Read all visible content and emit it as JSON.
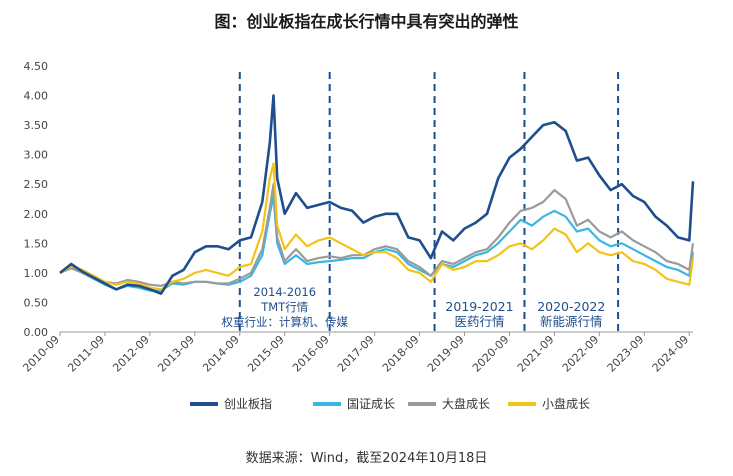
{
  "figure": {
    "title": "图：创业板指在成长行情中具有突出的弹性",
    "source_note": "数据来源：Wind，截至2024年10月18日"
  },
  "annotations": [
    {
      "lines": [
        "2014-2016",
        "TMT行情",
        "权重行业：计算机、传媒"
      ],
      "x_from": "2014-09",
      "x_to": "2016-09",
      "color": "#1f4e8c"
    },
    {
      "lines": [
        "2019-2021",
        "医药行情"
      ],
      "x_from": "2019-01",
      "x_to": "2021-01",
      "color": "#1f4e8c"
    },
    {
      "lines": [
        "2020-2022",
        "新能源行情"
      ],
      "x_from": "2021-01",
      "x_to": "2023-02",
      "color": "#1f4e8c"
    }
  ],
  "chart_data": {
    "type": "line",
    "title": "图：创业板指在成长行情中具有突出的弹性",
    "xlabel": "",
    "ylabel": "",
    "ylim": [
      0,
      4.5
    ],
    "yticks": [
      "0.00",
      "0.50",
      "1.00",
      "1.50",
      "2.00",
      "2.50",
      "3.00",
      "3.50",
      "4.00",
      "4.50"
    ],
    "xlim": [
      "2010-09",
      "2024-10"
    ],
    "xticks": [
      "2010-09",
      "2011-09",
      "2012-09",
      "2013-09",
      "2014-09",
      "2015-09",
      "2016-09",
      "2017-09",
      "2018-09",
      "2019-09",
      "2020-09",
      "2021-09",
      "2022-09",
      "2023-09",
      "2024-09"
    ],
    "grid": false,
    "legend_position": "bottom",
    "vlines": [
      "2014-09",
      "2016-09",
      "2019-01",
      "2021-01",
      "2023-02"
    ],
    "series": [
      {
        "name": "创业板指",
        "color": "#1f4e8c",
        "x": [
          "2010-09",
          "2010-12",
          "2011-03",
          "2011-06",
          "2011-09",
          "2011-12",
          "2012-03",
          "2012-06",
          "2012-09",
          "2012-12",
          "2013-03",
          "2013-06",
          "2013-09",
          "2013-12",
          "2014-03",
          "2014-06",
          "2014-09",
          "2014-12",
          "2015-03",
          "2015-05",
          "2015-06",
          "2015-07",
          "2015-09",
          "2015-12",
          "2016-03",
          "2016-06",
          "2016-09",
          "2016-12",
          "2017-03",
          "2017-06",
          "2017-09",
          "2017-12",
          "2018-03",
          "2018-06",
          "2018-09",
          "2018-12",
          "2019-03",
          "2019-06",
          "2019-09",
          "2019-12",
          "2020-03",
          "2020-06",
          "2020-09",
          "2020-12",
          "2021-03",
          "2021-06",
          "2021-09",
          "2021-12",
          "2022-03",
          "2022-06",
          "2022-09",
          "2022-12",
          "2023-03",
          "2023-06",
          "2023-09",
          "2023-12",
          "2024-03",
          "2024-06",
          "2024-09",
          "2024-10"
        ],
        "values": [
          1.0,
          1.15,
          1.02,
          0.92,
          0.82,
          0.72,
          0.8,
          0.78,
          0.72,
          0.65,
          0.95,
          1.05,
          1.35,
          1.45,
          1.45,
          1.4,
          1.55,
          1.6,
          2.2,
          3.2,
          4.0,
          2.6,
          2.0,
          2.35,
          2.1,
          2.15,
          2.2,
          2.1,
          2.05,
          1.85,
          1.95,
          2.0,
          2.0,
          1.6,
          1.55,
          1.25,
          1.7,
          1.55,
          1.75,
          1.85,
          2.0,
          2.6,
          2.95,
          3.1,
          3.3,
          3.5,
          3.55,
          3.4,
          2.9,
          2.95,
          2.65,
          2.4,
          2.5,
          2.3,
          2.2,
          1.95,
          1.8,
          1.6,
          1.55,
          2.55
        ]
      },
      {
        "name": "国证成长",
        "color": "#3ab6e2",
        "x": [
          "2010-09",
          "2010-12",
          "2011-03",
          "2011-06",
          "2011-09",
          "2011-12",
          "2012-03",
          "2012-06",
          "2012-09",
          "2012-12",
          "2013-03",
          "2013-06",
          "2013-09",
          "2013-12",
          "2014-03",
          "2014-06",
          "2014-09",
          "2014-12",
          "2015-03",
          "2015-05",
          "2015-06",
          "2015-07",
          "2015-09",
          "2015-12",
          "2016-03",
          "2016-06",
          "2016-09",
          "2016-12",
          "2017-03",
          "2017-06",
          "2017-09",
          "2017-12",
          "2018-03",
          "2018-06",
          "2018-09",
          "2018-12",
          "2019-03",
          "2019-06",
          "2019-09",
          "2019-12",
          "2020-03",
          "2020-06",
          "2020-09",
          "2020-12",
          "2021-03",
          "2021-06",
          "2021-09",
          "2021-12",
          "2022-03",
          "2022-06",
          "2022-09",
          "2022-12",
          "2023-03",
          "2023-06",
          "2023-09",
          "2023-12",
          "2024-03",
          "2024-06",
          "2024-09",
          "2024-10"
        ],
        "values": [
          1.0,
          1.1,
          1.0,
          0.9,
          0.8,
          0.72,
          0.78,
          0.75,
          0.7,
          0.7,
          0.82,
          0.8,
          0.85,
          0.85,
          0.82,
          0.8,
          0.85,
          0.95,
          1.3,
          2.0,
          2.3,
          1.5,
          1.15,
          1.3,
          1.15,
          1.18,
          1.2,
          1.22,
          1.25,
          1.25,
          1.35,
          1.4,
          1.35,
          1.15,
          1.05,
          0.95,
          1.15,
          1.1,
          1.2,
          1.3,
          1.35,
          1.5,
          1.7,
          1.9,
          1.8,
          1.95,
          2.05,
          1.95,
          1.7,
          1.75,
          1.55,
          1.45,
          1.5,
          1.4,
          1.3,
          1.2,
          1.1,
          1.05,
          0.95,
          1.35
        ]
      },
      {
        "name": "大盘成长",
        "color": "#9a9a9a",
        "x": [
          "2010-09",
          "2010-12",
          "2011-03",
          "2011-06",
          "2011-09",
          "2011-12",
          "2012-03",
          "2012-06",
          "2012-09",
          "2012-12",
          "2013-03",
          "2013-06",
          "2013-09",
          "2013-12",
          "2014-03",
          "2014-06",
          "2014-09",
          "2014-12",
          "2015-03",
          "2015-05",
          "2015-06",
          "2015-07",
          "2015-09",
          "2015-12",
          "2016-03",
          "2016-06",
          "2016-09",
          "2016-12",
          "2017-03",
          "2017-06",
          "2017-09",
          "2017-12",
          "2018-03",
          "2018-06",
          "2018-09",
          "2018-12",
          "2019-03",
          "2019-06",
          "2019-09",
          "2019-12",
          "2020-03",
          "2020-06",
          "2020-09",
          "2020-12",
          "2021-03",
          "2021-06",
          "2021-09",
          "2021-12",
          "2022-03",
          "2022-06",
          "2022-09",
          "2022-12",
          "2023-03",
          "2023-06",
          "2023-09",
          "2023-12",
          "2024-03",
          "2024-06",
          "2024-09",
          "2024-10"
        ],
        "values": [
          1.0,
          1.08,
          1.0,
          0.92,
          0.85,
          0.82,
          0.88,
          0.85,
          0.8,
          0.78,
          0.85,
          0.82,
          0.85,
          0.85,
          0.82,
          0.82,
          0.9,
          1.0,
          1.4,
          2.1,
          2.5,
          1.6,
          1.2,
          1.4,
          1.2,
          1.25,
          1.28,
          1.25,
          1.3,
          1.3,
          1.4,
          1.45,
          1.4,
          1.2,
          1.1,
          0.95,
          1.2,
          1.15,
          1.25,
          1.35,
          1.4,
          1.6,
          1.85,
          2.05,
          2.1,
          2.2,
          2.4,
          2.25,
          1.8,
          1.9,
          1.7,
          1.6,
          1.7,
          1.55,
          1.45,
          1.35,
          1.2,
          1.15,
          1.05,
          1.5
        ]
      },
      {
        "name": "小盘成长",
        "color": "#f2c318",
        "x": [
          "2010-09",
          "2010-12",
          "2011-03",
          "2011-06",
          "2011-09",
          "2011-12",
          "2012-03",
          "2012-06",
          "2012-09",
          "2012-12",
          "2013-03",
          "2013-06",
          "2013-09",
          "2013-12",
          "2014-03",
          "2014-06",
          "2014-09",
          "2014-12",
          "2015-03",
          "2015-05",
          "2015-06",
          "2015-07",
          "2015-09",
          "2015-12",
          "2016-03",
          "2016-06",
          "2016-09",
          "2016-12",
          "2017-03",
          "2017-06",
          "2017-09",
          "2017-12",
          "2018-03",
          "2018-06",
          "2018-09",
          "2018-12",
          "2019-03",
          "2019-06",
          "2019-09",
          "2019-12",
          "2020-03",
          "2020-06",
          "2020-09",
          "2020-12",
          "2021-03",
          "2021-06",
          "2021-09",
          "2021-12",
          "2022-03",
          "2022-06",
          "2022-09",
          "2022-12",
          "2023-03",
          "2023-06",
          "2023-09",
          "2023-12",
          "2024-03",
          "2024-06",
          "2024-09",
          "2024-10"
        ],
        "values": [
          1.0,
          1.12,
          1.05,
          0.95,
          0.85,
          0.8,
          0.85,
          0.82,
          0.75,
          0.72,
          0.85,
          0.9,
          1.0,
          1.05,
          1.0,
          0.95,
          1.1,
          1.15,
          1.7,
          2.6,
          2.85,
          1.8,
          1.4,
          1.65,
          1.45,
          1.55,
          1.6,
          1.5,
          1.4,
          1.3,
          1.35,
          1.35,
          1.25,
          1.05,
          1.0,
          0.85,
          1.15,
          1.05,
          1.1,
          1.2,
          1.2,
          1.3,
          1.45,
          1.5,
          1.4,
          1.55,
          1.75,
          1.65,
          1.35,
          1.5,
          1.35,
          1.3,
          1.35,
          1.2,
          1.15,
          1.05,
          0.9,
          0.85,
          0.8,
          1.25
        ]
      }
    ]
  }
}
